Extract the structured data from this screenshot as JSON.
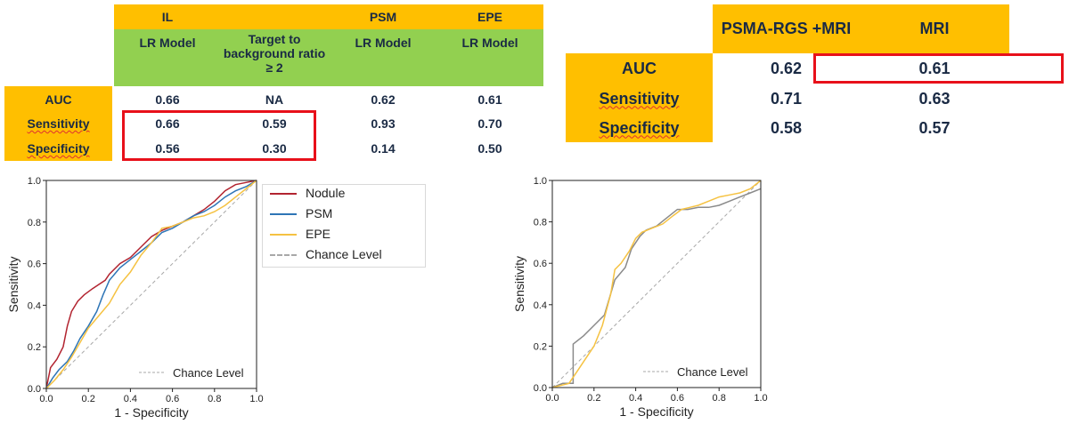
{
  "table1": {
    "groups": [
      "IL",
      "PSM",
      "EPE"
    ],
    "subheaders": [
      "LR Model",
      "Target to background ratio ≥ 2",
      "LR Model",
      "LR Model"
    ],
    "rows": [
      {
        "label": "AUC",
        "values": [
          "0.66",
          "NA",
          "0.62",
          "0.61"
        ]
      },
      {
        "label": "Sensitivity",
        "values": [
          "0.66",
          "0.59",
          "0.93",
          "0.70"
        ]
      },
      {
        "label": "Specificity",
        "values": [
          "0.56",
          "0.30",
          "0.14",
          "0.50"
        ]
      }
    ]
  },
  "table2": {
    "headers": [
      "PSMA-RGS +MRI",
      "MRI"
    ],
    "rows": [
      {
        "label": "AUC",
        "values": [
          "0.62",
          "0.61"
        ]
      },
      {
        "label": "Sensitivity",
        "values": [
          "0.71",
          "0.63"
        ]
      },
      {
        "label": "Specificity",
        "values": [
          "0.58",
          "0.57"
        ]
      }
    ]
  },
  "colors": {
    "orange": "#ffbf00",
    "green": "#92d050",
    "highlight": "#e8101a",
    "nodule": "#b22430",
    "psm": "#2e75b6",
    "epe": "#f5c242",
    "gray": "#8a8a8a",
    "chance": "#a8a8a8"
  },
  "chart_data": [
    {
      "type": "line",
      "xlabel": "1 - Specificity",
      "ylabel": "Sensitivity",
      "xlim": [
        0,
        1
      ],
      "ylim": [
        0,
        1
      ],
      "ticks": [
        "0.0",
        "0.2",
        "0.4",
        "0.6",
        "0.8",
        "1.0"
      ],
      "grid": false,
      "legend": {
        "position": "outside-right",
        "entries": [
          "Nodule",
          "PSM",
          "EPE",
          "Chance Level"
        ]
      },
      "chance_label": "Chance Level",
      "series": [
        {
          "name": "Nodule",
          "color": "#b22430",
          "x": [
            0,
            0.02,
            0.05,
            0.08,
            0.1,
            0.12,
            0.15,
            0.18,
            0.22,
            0.25,
            0.28,
            0.3,
            0.35,
            0.4,
            0.45,
            0.5,
            0.55,
            0.6,
            0.65,
            0.7,
            0.75,
            0.8,
            0.85,
            0.9,
            0.95,
            1.0
          ],
          "y": [
            0,
            0.1,
            0.14,
            0.2,
            0.3,
            0.37,
            0.42,
            0.45,
            0.48,
            0.5,
            0.52,
            0.55,
            0.6,
            0.63,
            0.68,
            0.73,
            0.76,
            0.78,
            0.8,
            0.83,
            0.86,
            0.9,
            0.95,
            0.98,
            0.99,
            1.0
          ]
        },
        {
          "name": "PSM",
          "color": "#2e75b6",
          "x": [
            0,
            0.03,
            0.06,
            0.1,
            0.13,
            0.16,
            0.2,
            0.24,
            0.27,
            0.3,
            0.35,
            0.4,
            0.45,
            0.5,
            0.55,
            0.6,
            0.65,
            0.7,
            0.75,
            0.8,
            0.85,
            0.9,
            0.95,
            1.0
          ],
          "y": [
            0,
            0.05,
            0.09,
            0.13,
            0.18,
            0.24,
            0.3,
            0.37,
            0.45,
            0.52,
            0.58,
            0.62,
            0.66,
            0.7,
            0.75,
            0.77,
            0.8,
            0.83,
            0.85,
            0.88,
            0.92,
            0.95,
            0.97,
            1.0
          ]
        },
        {
          "name": "EPE",
          "color": "#f5c242",
          "x": [
            0,
            0.04,
            0.08,
            0.12,
            0.16,
            0.2,
            0.25,
            0.3,
            0.35,
            0.4,
            0.45,
            0.5,
            0.55,
            0.6,
            0.65,
            0.7,
            0.75,
            0.8,
            0.85,
            0.9,
            0.95,
            1.0
          ],
          "y": [
            0,
            0.04,
            0.09,
            0.15,
            0.22,
            0.29,
            0.35,
            0.41,
            0.5,
            0.56,
            0.64,
            0.7,
            0.77,
            0.78,
            0.8,
            0.82,
            0.83,
            0.85,
            0.88,
            0.92,
            0.96,
            1.0
          ]
        }
      ]
    },
    {
      "type": "line",
      "xlabel": "1 - Specificity",
      "ylabel": "Sensitivity",
      "xlim": [
        0,
        1
      ],
      "ylim": [
        0,
        1
      ],
      "ticks": [
        "0.0",
        "0.2",
        "0.4",
        "0.6",
        "0.8",
        "1.0"
      ],
      "grid": false,
      "chance_label": "Chance Level",
      "series": [
        {
          "name": "PSMA-RGS +MRI",
          "color": "#8a8a8a",
          "x": [
            0,
            0.05,
            0.1,
            0.1,
            0.15,
            0.2,
            0.25,
            0.3,
            0.35,
            0.38,
            0.42,
            0.45,
            0.5,
            0.55,
            0.6,
            0.65,
            0.7,
            0.75,
            0.8,
            0.85,
            0.9,
            0.95,
            1.0
          ],
          "y": [
            0,
            0.02,
            0.02,
            0.21,
            0.25,
            0.3,
            0.35,
            0.52,
            0.58,
            0.67,
            0.73,
            0.76,
            0.78,
            0.82,
            0.86,
            0.86,
            0.87,
            0.87,
            0.88,
            0.9,
            0.92,
            0.94,
            0.96
          ]
        },
        {
          "name": "MRI",
          "color": "#f5c242",
          "x": [
            0,
            0.08,
            0.12,
            0.16,
            0.2,
            0.24,
            0.28,
            0.3,
            0.33,
            0.37,
            0.4,
            0.43,
            0.48,
            0.53,
            0.58,
            0.62,
            0.66,
            0.7,
            0.75,
            0.8,
            0.85,
            0.9,
            0.95,
            1.0
          ],
          "y": [
            0,
            0.02,
            0.08,
            0.14,
            0.2,
            0.3,
            0.45,
            0.57,
            0.6,
            0.66,
            0.72,
            0.75,
            0.77,
            0.79,
            0.83,
            0.86,
            0.87,
            0.88,
            0.9,
            0.92,
            0.93,
            0.94,
            0.96,
            1.0
          ]
        }
      ]
    }
  ]
}
